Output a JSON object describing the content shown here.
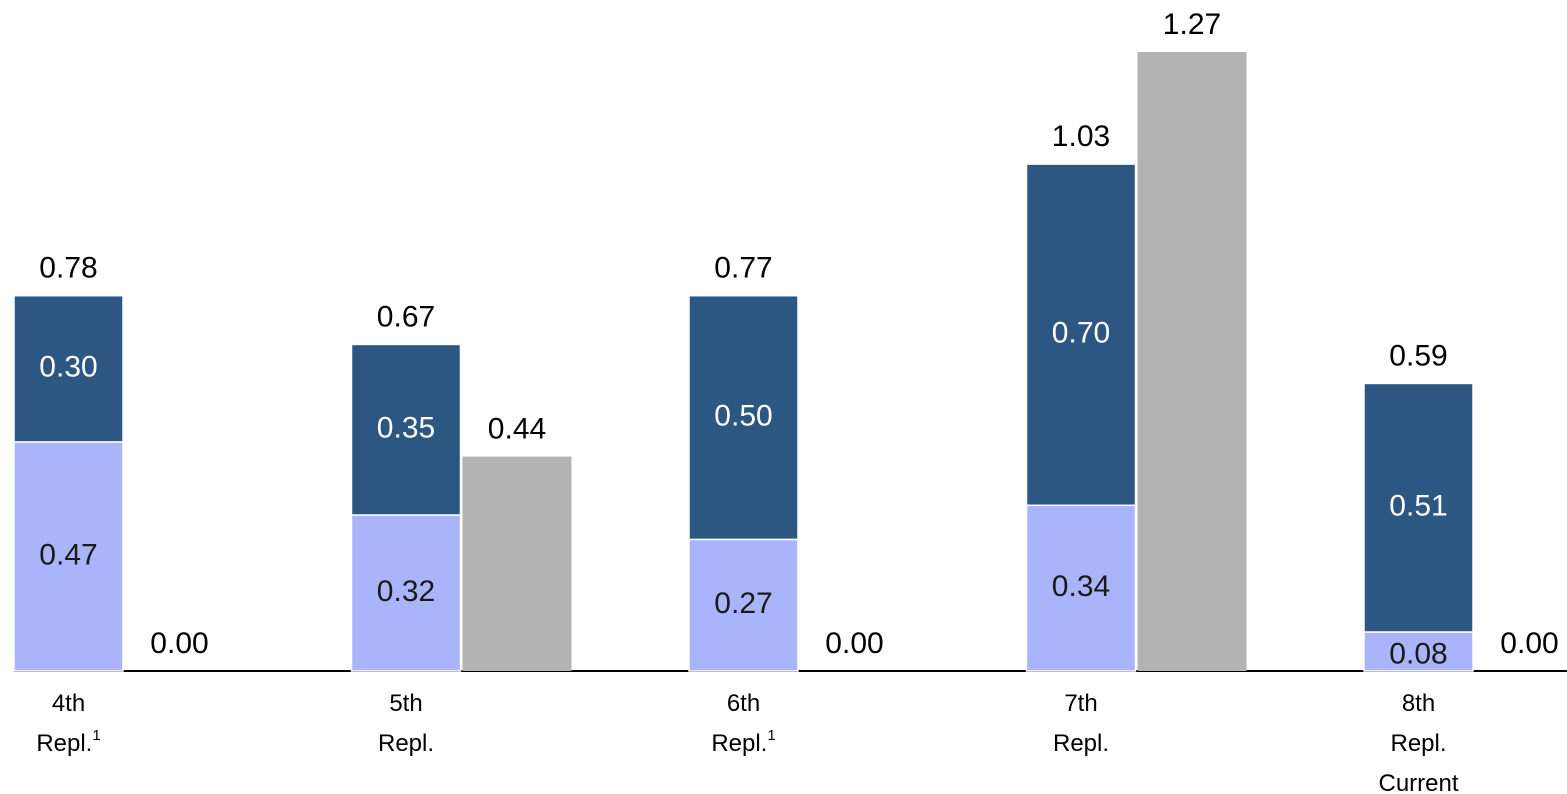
{
  "chart_data": {
    "type": "stacked-grouped-bar",
    "categories": [
      [
        "4th",
        "Repl."
      ],
      [
        "5th",
        "Repl."
      ],
      [
        "6th",
        "Repl."
      ],
      [
        "7th",
        "Repl."
      ],
      [
        "8th",
        "Repl.",
        "Current"
      ]
    ],
    "category_notes": [
      "1",
      null,
      "1",
      null,
      null
    ],
    "series": [
      {
        "color": "#aab4fa",
        "label_color": "#1a1a1a",
        "values": [
          0.47,
          0.32,
          0.27,
          0.34,
          0.08
        ],
        "value_labels": [
          "0.47",
          "0.32",
          "0.27",
          "0.34",
          "0.08"
        ]
      },
      {
        "color": "#2b5782",
        "label_color": "#ffffff",
        "values": [
          0.3,
          0.35,
          0.5,
          0.7,
          0.51
        ],
        "value_labels": [
          "0.30",
          "0.35",
          "0.50",
          "0.70",
          "0.51"
        ]
      }
    ],
    "totals": [
      "0.78",
      "0.67",
      "0.77",
      "1.03",
      "0.59"
    ],
    "comparison": {
      "color": "#b3b3b3",
      "values": [
        0.0,
        0.44,
        0.0,
        1.27,
        0.0
      ],
      "value_labels": [
        "0.00",
        "0.44",
        "0.00",
        "1.27",
        "0.00"
      ]
    },
    "ylim": [
      0,
      1.35
    ]
  }
}
